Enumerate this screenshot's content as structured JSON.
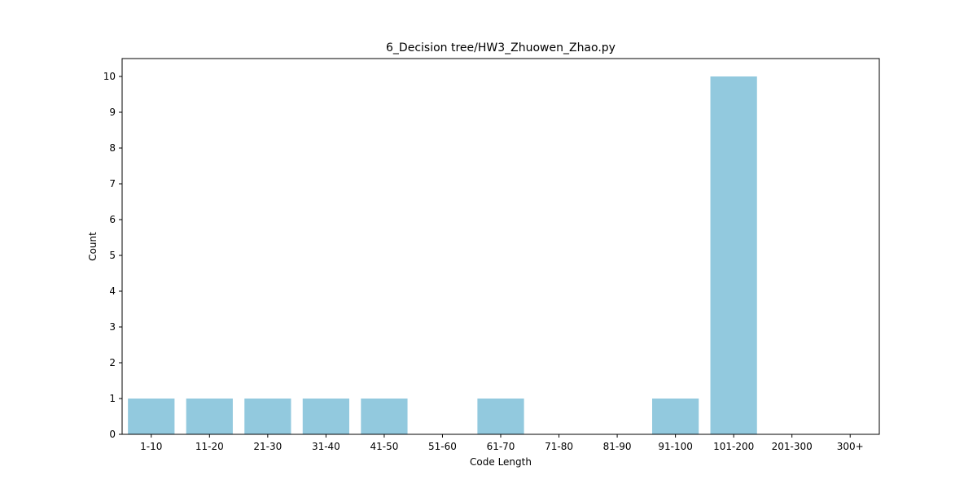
{
  "chart_data": {
    "type": "bar",
    "title": "6_Decision tree/HW3_Zhuowen_Zhao.py",
    "xlabel": "Code Length",
    "ylabel": "Count",
    "categories": [
      "1-10",
      "11-20",
      "21-30",
      "31-40",
      "41-50",
      "51-60",
      "61-70",
      "71-80",
      "81-90",
      "91-100",
      "101-200",
      "201-300",
      "300+"
    ],
    "values": [
      1,
      1,
      1,
      1,
      1,
      0,
      1,
      0,
      0,
      1,
      10,
      0,
      0
    ],
    "ylim": [
      0,
      10.5
    ],
    "yticks": [
      0,
      1,
      2,
      3,
      4,
      5,
      6,
      7,
      8,
      9,
      10
    ],
    "bar_color": "#92c9de",
    "grid": false,
    "legend": "none"
  }
}
